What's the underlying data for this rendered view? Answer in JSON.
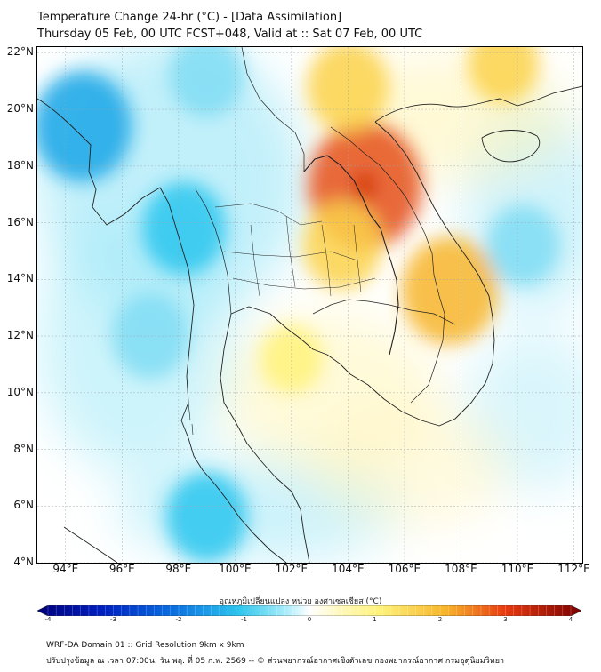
{
  "title": {
    "line1": "Temperature Change 24-hr (°C) - [Data Assimilation]",
    "line2": "Thursday 05 Feb, 00 UTC FCST+048, Valid at :: Sat 07 Feb, 00 UTC"
  },
  "axes": {
    "lat_labels": [
      "22°N",
      "20°N",
      "18°N",
      "16°N",
      "14°N",
      "12°N",
      "10°N",
      "8°N",
      "6°N",
      "4°N"
    ],
    "lon_labels": [
      "94°E",
      "96°E",
      "98°E",
      "100°E",
      "102°E",
      "104°E",
      "106°E",
      "108°E",
      "110°E",
      "112°E"
    ],
    "lat_range": [
      4,
      22.2
    ],
    "lon_range": [
      93,
      112.3
    ]
  },
  "colorbar": {
    "label": "อุณหภูมิเปลี่ยนแปลง หน่วย องศาเซลเซียส (°C)",
    "ticks": [
      "-4",
      "-3",
      "-2",
      "-1",
      "0",
      "1",
      "2",
      "3",
      "4"
    ],
    "min": -4,
    "max": 4,
    "colors": {
      "cold_max": "#00007a",
      "cold_mid": "#0a6fe0",
      "cold_light": "#2cc6ee",
      "neutral": "#ffffff",
      "warm_light": "#fff27a",
      "warm_mid": "#f7b52a",
      "warm_max": "#7a0000"
    }
  },
  "field": {
    "warm_regions": [
      {
        "name": "Laos/Thailand border",
        "lon": 104.6,
        "lat": 17.3,
        "value": 3.0
      },
      {
        "name": "Northern Laos",
        "lon": 104.0,
        "lat": 20.8,
        "value": 1.5
      },
      {
        "name": "Southern Vietnam highlands",
        "lon": 107.6,
        "lat": 13.6,
        "value": 2.2
      },
      {
        "name": "Northeast Thailand",
        "lon": 103.8,
        "lat": 15.2,
        "value": 1.4
      },
      {
        "name": "Gulf coast",
        "lon": 102.0,
        "lat": 11.2,
        "value": 0.6
      },
      {
        "name": "South China Sea north",
        "lon": 109.5,
        "lat": 21.6,
        "value": 1.0
      }
    ],
    "cold_regions": [
      {
        "name": "Bay of Bengal north",
        "lon": 94.6,
        "lat": 19.4,
        "value": -2.3
      },
      {
        "name": "Myanmar west",
        "lon": 98.2,
        "lat": 15.8,
        "value": -1.6
      },
      {
        "name": "Andaman Sea",
        "lon": 97.0,
        "lat": 12.0,
        "value": -1.3
      },
      {
        "name": "Southern Thailand",
        "lon": 99.0,
        "lat": 5.6,
        "value": -1.5
      },
      {
        "name": "South China Sea",
        "lon": 110.2,
        "lat": 15.2,
        "value": -1.1
      },
      {
        "name": "Upper Myanmar",
        "lon": 99.0,
        "lat": 21.2,
        "value": -1.2
      }
    ]
  },
  "footer": {
    "line1": "WRF-DA Domain 01 :: Grid Resolution 9km x 9km",
    "line2": "ปรับปรุงข้อมูล ณ เวลา 07:00น. วัน พฤ. ที่ 05 ก.พ. 2569 -- © ส่วนพยากรณ์อากาศเชิงตัวเลข กองพยากรณ์อากาศ กรมอุตุนิยมวิทยา"
  }
}
